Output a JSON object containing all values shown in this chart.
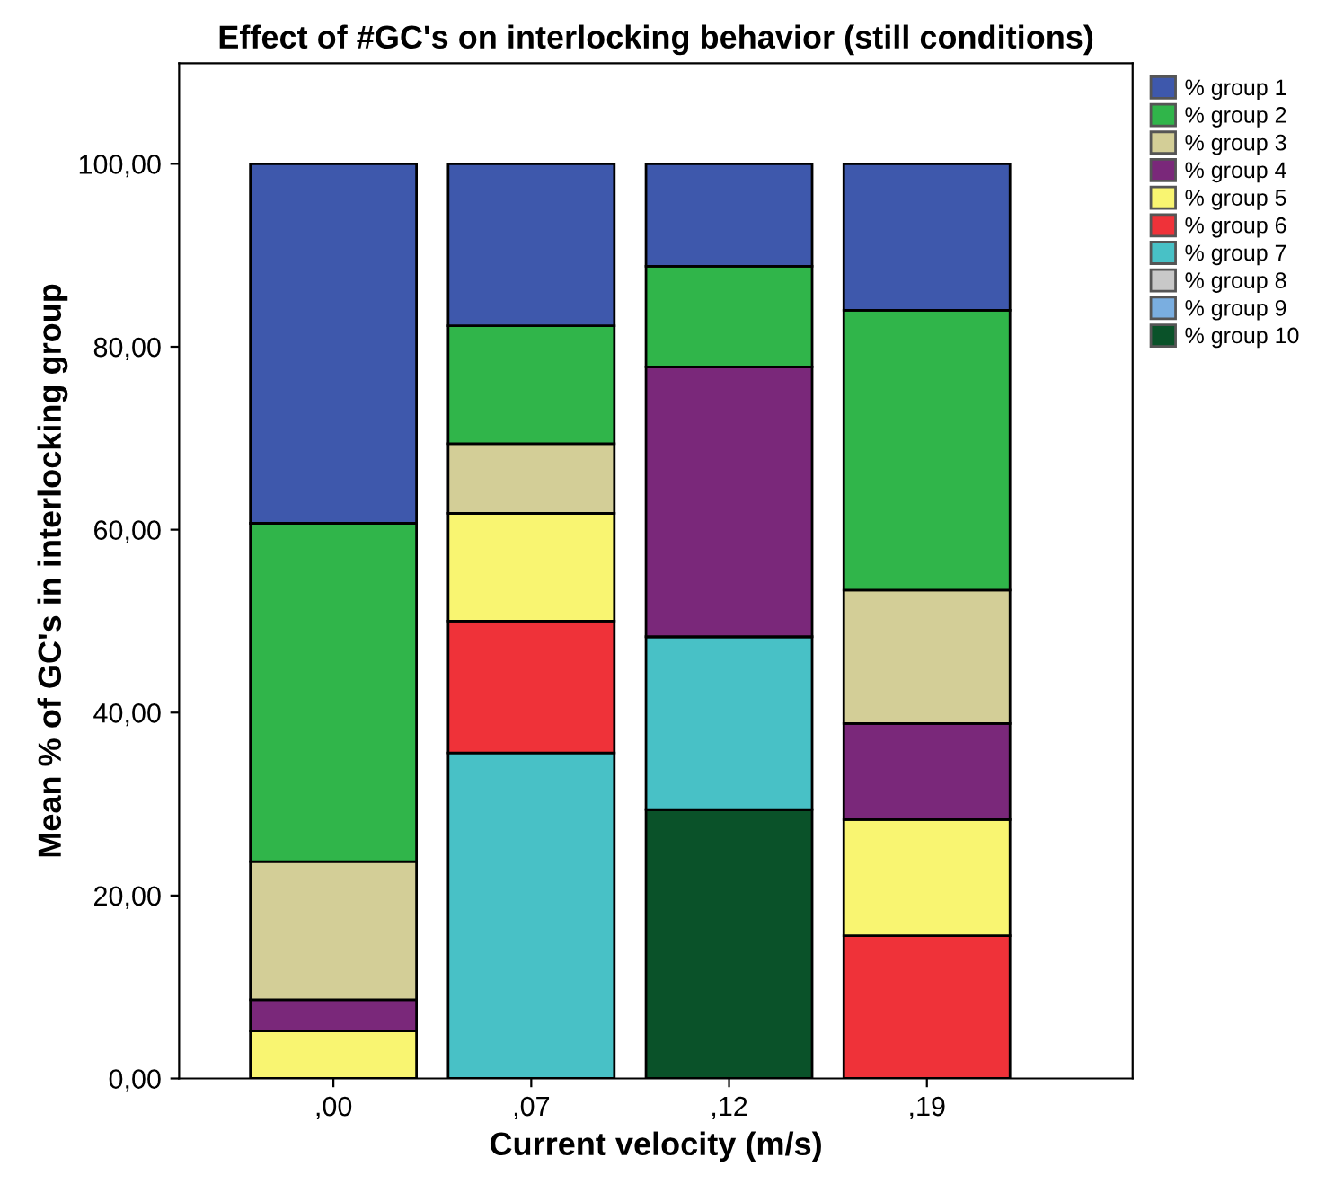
{
  "chart_data": {
    "type": "bar",
    "stacked": true,
    "title": "Effect of #GC's on interlocking behavior (still conditions)",
    "xlabel": "Current velocity (m/s)",
    "ylabel": "Mean % of GC's in interlocking group",
    "categories": [
      ",00",
      ",07",
      ",12",
      ",19"
    ],
    "series": [
      {
        "name": "% group 10",
        "color": "#0a5229",
        "values": [
          0,
          0,
          29.4,
          0
        ]
      },
      {
        "name": "% group 9",
        "color": "#7aaee0",
        "values": [
          0,
          0,
          0,
          0
        ]
      },
      {
        "name": "% group 8",
        "color": "#c8c8c8",
        "values": [
          0,
          0,
          0,
          0
        ]
      },
      {
        "name": "% group 7",
        "color": "#48c1c6",
        "values": [
          0,
          35.6,
          18.9,
          0
        ]
      },
      {
        "name": "% group 6",
        "color": "#ef3239",
        "values": [
          0,
          14.4,
          0,
          15.6
        ]
      },
      {
        "name": "% group 5",
        "color": "#f9f571",
        "values": [
          5.2,
          11.8,
          0,
          12.7
        ]
      },
      {
        "name": "% group 4",
        "color": "#7a287a",
        "values": [
          3.4,
          0,
          29.5,
          10.5
        ]
      },
      {
        "name": "% group 3",
        "color": "#d3ce97",
        "values": [
          15.1,
          7.6,
          0,
          14.6
        ]
      },
      {
        "name": "% group 2",
        "color": "#30b54a",
        "values": [
          37.0,
          12.9,
          11.0,
          30.6
        ]
      },
      {
        "name": "% group 1",
        "color": "#3e58ac",
        "values": [
          39.3,
          17.7,
          11.2,
          16.0
        ]
      }
    ],
    "ylim": [
      0,
      111
    ],
    "yticks": [
      {
        "value": 0,
        "label": "0,00"
      },
      {
        "value": 20,
        "label": "20,00"
      },
      {
        "value": 40,
        "label": "40,00"
      },
      {
        "value": 60,
        "label": "60,00"
      },
      {
        "value": 80,
        "label": "80,00"
      },
      {
        "value": 100,
        "label": "100,00"
      }
    ],
    "grid": false,
    "legend": "top right"
  }
}
